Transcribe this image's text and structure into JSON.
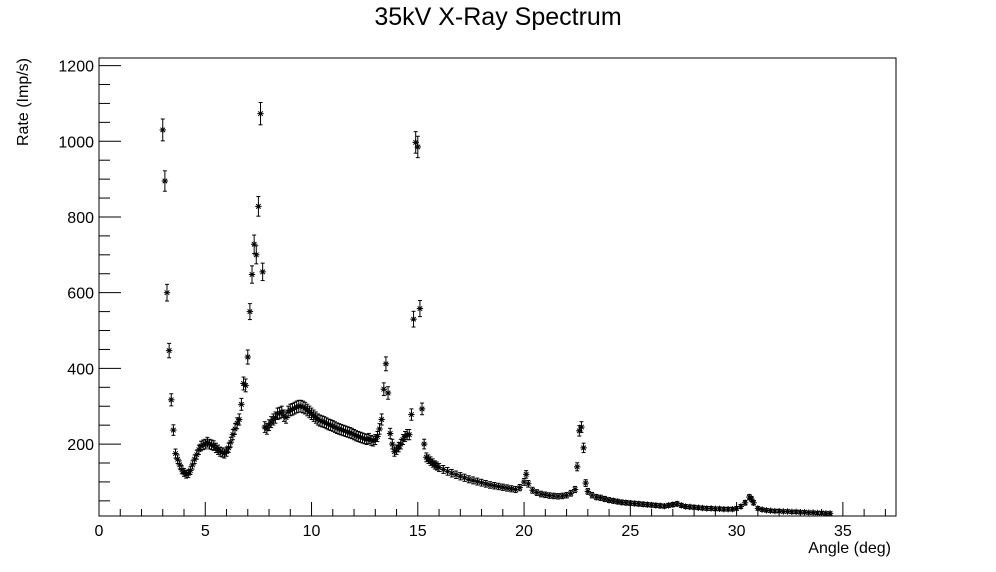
{
  "chart_data": {
    "type": "scatter",
    "title": "35kV X-Ray Spectrum",
    "xlabel": "Angle (deg)",
    "ylabel": "Rate (Imp/s)",
    "xlim": [
      0,
      37.5
    ],
    "ylim": [
      10,
      1220
    ],
    "x_ticks": [
      "0",
      "5",
      "10",
      "15",
      "20",
      "25",
      "30",
      "35"
    ],
    "y_ticks": [
      "200",
      "400",
      "600",
      "800",
      "1000",
      "1200"
    ],
    "marker": "asterisk",
    "error_bars": true,
    "series": [
      {
        "color": "#000000",
        "points": [
          [
            3.0,
            1030
          ],
          [
            3.1,
            895
          ],
          [
            3.2,
            600
          ],
          [
            3.3,
            447
          ],
          [
            3.4,
            317
          ],
          [
            3.5,
            237
          ],
          [
            3.6,
            175
          ],
          [
            3.7,
            160
          ],
          [
            3.8,
            145
          ],
          [
            3.9,
            132
          ],
          [
            4.0,
            125
          ],
          [
            4.1,
            120
          ],
          [
            4.2,
            122
          ],
          [
            4.3,
            130
          ],
          [
            4.4,
            145
          ],
          [
            4.5,
            160
          ],
          [
            4.6,
            172
          ],
          [
            4.7,
            185
          ],
          [
            4.8,
            195
          ],
          [
            4.9,
            198
          ],
          [
            5.0,
            200
          ],
          [
            5.1,
            205
          ],
          [
            5.2,
            200
          ],
          [
            5.3,
            198
          ],
          [
            5.4,
            196
          ],
          [
            5.5,
            190
          ],
          [
            5.6,
            185
          ],
          [
            5.7,
            180
          ],
          [
            5.8,
            178
          ],
          [
            5.9,
            175
          ],
          [
            6.0,
            180
          ],
          [
            6.1,
            190
          ],
          [
            6.2,
            205
          ],
          [
            6.3,
            225
          ],
          [
            6.4,
            240
          ],
          [
            6.5,
            255
          ],
          [
            6.6,
            265
          ],
          [
            6.7,
            305
          ],
          [
            6.8,
            360
          ],
          [
            6.9,
            355
          ],
          [
            7.0,
            430
          ],
          [
            7.1,
            550
          ],
          [
            7.2,
            648
          ],
          [
            7.3,
            728
          ],
          [
            7.4,
            700
          ],
          [
            7.5,
            828
          ],
          [
            7.6,
            1073
          ],
          [
            7.7,
            655
          ],
          [
            7.8,
            245
          ],
          [
            7.9,
            240
          ],
          [
            8.0,
            250
          ],
          [
            8.1,
            258
          ],
          [
            8.2,
            265
          ],
          [
            8.3,
            270
          ],
          [
            8.4,
            280
          ],
          [
            8.5,
            282
          ],
          [
            8.6,
            285
          ],
          [
            8.7,
            275
          ],
          [
            8.8,
            270
          ],
          [
            8.9,
            285
          ],
          [
            9.0,
            290
          ],
          [
            9.1,
            292
          ],
          [
            9.2,
            295
          ],
          [
            9.3,
            298
          ],
          [
            9.4,
            300
          ],
          [
            9.5,
            300
          ],
          [
            9.6,
            298
          ],
          [
            9.7,
            295
          ],
          [
            9.8,
            290
          ],
          [
            9.9,
            285
          ],
          [
            10.0,
            280
          ],
          [
            10.1,
            275
          ],
          [
            10.2,
            270
          ],
          [
            10.3,
            265
          ],
          [
            10.4,
            262
          ],
          [
            10.5,
            260
          ],
          [
            10.6,
            258
          ],
          [
            10.7,
            255
          ],
          [
            10.8,
            252
          ],
          [
            10.9,
            250
          ],
          [
            11.0,
            248
          ],
          [
            11.1,
            245
          ],
          [
            11.2,
            242
          ],
          [
            11.3,
            240
          ],
          [
            11.4,
            238
          ],
          [
            11.5,
            236
          ],
          [
            11.6,
            234
          ],
          [
            11.7,
            232
          ],
          [
            11.8,
            230
          ],
          [
            11.9,
            228
          ],
          [
            12.0,
            225
          ],
          [
            12.1,
            222
          ],
          [
            12.2,
            220
          ],
          [
            12.3,
            218
          ],
          [
            12.4,
            216
          ],
          [
            12.5,
            214
          ],
          [
            12.6,
            212
          ],
          [
            12.7,
            215
          ],
          [
            12.8,
            210
          ],
          [
            12.9,
            208
          ],
          [
            13.0,
            212
          ],
          [
            13.1,
            220
          ],
          [
            13.2,
            240
          ],
          [
            13.3,
            265
          ],
          [
            13.4,
            345
          ],
          [
            13.5,
            412
          ],
          [
            13.6,
            335
          ],
          [
            13.7,
            228
          ],
          [
            13.8,
            200
          ],
          [
            13.9,
            180
          ],
          [
            14.0,
            185
          ],
          [
            14.1,
            192
          ],
          [
            14.2,
            200
          ],
          [
            14.3,
            212
          ],
          [
            14.4,
            220
          ],
          [
            14.5,
            225
          ],
          [
            14.6,
            225
          ],
          [
            14.7,
            278
          ],
          [
            14.8,
            530
          ],
          [
            14.9,
            997
          ],
          [
            15.0,
            985
          ],
          [
            15.1,
            558
          ],
          [
            15.2,
            293
          ],
          [
            15.3,
            200
          ],
          [
            15.4,
            165
          ],
          [
            15.5,
            160
          ],
          [
            15.6,
            155
          ],
          [
            15.7,
            150
          ],
          [
            15.8,
            145
          ],
          [
            15.9,
            142
          ],
          [
            16.0,
            138
          ],
          [
            16.2,
            133
          ],
          [
            16.4,
            128
          ],
          [
            16.6,
            123
          ],
          [
            16.8,
            119
          ],
          [
            17.0,
            115
          ],
          [
            17.2,
            111
          ],
          [
            17.4,
            107
          ],
          [
            17.6,
            104
          ],
          [
            17.8,
            101
          ],
          [
            18.0,
            98
          ],
          [
            18.2,
            95
          ],
          [
            18.4,
            92
          ],
          [
            18.6,
            90
          ],
          [
            18.8,
            88
          ],
          [
            19.0,
            86
          ],
          [
            19.2,
            84
          ],
          [
            19.4,
            82
          ],
          [
            19.6,
            80
          ],
          [
            19.8,
            85
          ],
          [
            20.0,
            100
          ],
          [
            20.1,
            120
          ],
          [
            20.2,
            95
          ],
          [
            20.4,
            78
          ],
          [
            20.6,
            72
          ],
          [
            20.8,
            68
          ],
          [
            21.0,
            66
          ],
          [
            21.2,
            64
          ],
          [
            21.4,
            63
          ],
          [
            21.6,
            62
          ],
          [
            21.8,
            63
          ],
          [
            22.0,
            65
          ],
          [
            22.2,
            70
          ],
          [
            22.4,
            80
          ],
          [
            22.5,
            140
          ],
          [
            22.6,
            235
          ],
          [
            22.7,
            245
          ],
          [
            22.8,
            190
          ],
          [
            22.9,
            97
          ],
          [
            23.0,
            75
          ],
          [
            23.2,
            65
          ],
          [
            23.4,
            60
          ],
          [
            23.6,
            58
          ],
          [
            23.8,
            55
          ],
          [
            24.0,
            52
          ],
          [
            24.2,
            50
          ],
          [
            24.4,
            48
          ],
          [
            24.6,
            46
          ],
          [
            24.8,
            45
          ],
          [
            25.0,
            44
          ],
          [
            25.2,
            43
          ],
          [
            25.4,
            42
          ],
          [
            25.6,
            41
          ],
          [
            25.8,
            40
          ],
          [
            26.0,
            39
          ],
          [
            26.2,
            38
          ],
          [
            26.4,
            37
          ],
          [
            26.6,
            36
          ],
          [
            26.8,
            38
          ],
          [
            27.0,
            40
          ],
          [
            27.2,
            42
          ],
          [
            27.4,
            38
          ],
          [
            27.6,
            35
          ],
          [
            27.8,
            34
          ],
          [
            28.0,
            33
          ],
          [
            28.2,
            32
          ],
          [
            28.4,
            31
          ],
          [
            28.6,
            30
          ],
          [
            28.8,
            30
          ],
          [
            29.0,
            29
          ],
          [
            29.2,
            29
          ],
          [
            29.4,
            28
          ],
          [
            29.6,
            28
          ],
          [
            29.8,
            28
          ],
          [
            30.0,
            30
          ],
          [
            30.2,
            35
          ],
          [
            30.4,
            45
          ],
          [
            30.6,
            60
          ],
          [
            30.7,
            55
          ],
          [
            30.8,
            45
          ],
          [
            31.0,
            30
          ],
          [
            31.2,
            27
          ],
          [
            31.4,
            25
          ],
          [
            31.6,
            24
          ],
          [
            31.8,
            23
          ],
          [
            32.0,
            23
          ],
          [
            32.2,
            22
          ],
          [
            32.4,
            22
          ],
          [
            32.6,
            21
          ],
          [
            32.8,
            21
          ],
          [
            33.0,
            20
          ],
          [
            33.2,
            20
          ],
          [
            33.4,
            19
          ],
          [
            33.6,
            19
          ],
          [
            33.8,
            18
          ],
          [
            34.0,
            18
          ],
          [
            34.2,
            17
          ],
          [
            34.4,
            17
          ]
        ]
      }
    ]
  }
}
